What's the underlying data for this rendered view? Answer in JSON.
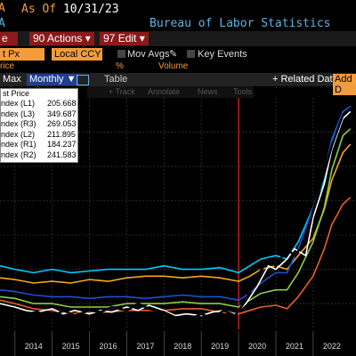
{
  "header": {
    "ticker_fragment": "A",
    "as_of_label": "As Of",
    "as_of_date": "10/31/23",
    "source": "Bureau of Labor Statistics",
    "left_fragment": "A"
  },
  "toolbar": {
    "fragment_left": "e",
    "actions_num": "90",
    "actions_label": "Actions ▾",
    "edit_num": "97",
    "edit_label": "Edit ▾",
    "field1_value": "t Px",
    "field2_value": "Local CCY",
    "mov_avgs_label": "Mov Avgs",
    "key_events_label": "Key Events",
    "price_fragment": "rice",
    "pct_label": "%",
    "volume_label": "Volume",
    "max_label": "Max",
    "period_label": "Monthly ▼",
    "table_label": "Table",
    "related_label": "+ Related Dat",
    "add_label": "Add D",
    "track_label": "+ Track",
    "annotate_label": "Annotate",
    "news_label": "News",
    "tools_label": "Tools"
  },
  "colors": {
    "background": "#000000",
    "accent_orange": "#f39c3c",
    "accent_blue": "#5ab4e6",
    "action_red": "#8b1a1a",
    "event_line": "#e0202a"
  },
  "chart_data": {
    "type": "line",
    "title": "",
    "xlabel": "",
    "ylabel": "",
    "x_ticks": [
      "2014",
      "2015",
      "2016",
      "2017",
      "2018",
      "2019",
      "2020",
      "2021",
      "2022"
    ],
    "event_line_x": 2020.0,
    "legend": {
      "heading": "st Price",
      "entries": [
        {
          "name": "ndex (L1)",
          "value": "205.668",
          "color": "#ffffff"
        },
        {
          "name": "ndex (L3)",
          "value": "349.687",
          "color": "#5ab4e6"
        },
        {
          "name": "ndex (R3)",
          "value": "269.053",
          "color": "#f39c3c"
        },
        {
          "name": "ndex (L2)",
          "value": "211.895",
          "color": "#8bd04a"
        },
        {
          "name": "ndex (R1)",
          "value": "184.237",
          "color": "#1e4fd0"
        },
        {
          "name": "ndex (R2)",
          "value": "241.583",
          "color": "#e8602a"
        }
      ]
    },
    "series": [
      {
        "color": "#00ccff",
        "values": [
          [
            2013.6,
            0.62
          ],
          [
            2014.0,
            0.6
          ],
          [
            2014.5,
            0.58
          ],
          [
            2015.0,
            0.6
          ],
          [
            2015.5,
            0.58
          ],
          [
            2016.0,
            0.59
          ],
          [
            2016.5,
            0.6
          ],
          [
            2017.0,
            0.6
          ],
          [
            2017.5,
            0.6
          ],
          [
            2018.0,
            0.62
          ],
          [
            2018.5,
            0.6
          ],
          [
            2019.0,
            0.6
          ],
          [
            2019.5,
            0.61
          ],
          [
            2020.0,
            0.58
          ],
          [
            2020.3,
            0.62
          ],
          [
            2020.6,
            0.66
          ],
          [
            2021.0,
            0.68
          ],
          [
            2021.3,
            0.66
          ],
          [
            2021.6,
            0.76
          ],
          [
            2022.0,
            0.96
          ],
          [
            2022.3,
            1.12
          ],
          [
            2022.5,
            1.35
          ],
          [
            2022.8,
            1.52
          ],
          [
            2023.0,
            1.55
          ]
        ]
      },
      {
        "color": "#f5a623",
        "values": [
          [
            2013.6,
            0.55
          ],
          [
            2014.0,
            0.54
          ],
          [
            2014.5,
            0.52
          ],
          [
            2015.0,
            0.53
          ],
          [
            2015.5,
            0.52
          ],
          [
            2016.0,
            0.54
          ],
          [
            2016.5,
            0.53
          ],
          [
            2017.0,
            0.55
          ],
          [
            2017.5,
            0.56
          ],
          [
            2018.0,
            0.56
          ],
          [
            2018.5,
            0.55
          ],
          [
            2019.0,
            0.56
          ],
          [
            2019.5,
            0.55
          ],
          [
            2020.0,
            0.53
          ],
          [
            2020.3,
            0.56
          ],
          [
            2020.6,
            0.6
          ],
          [
            2021.0,
            0.62
          ],
          [
            2021.3,
            0.6
          ],
          [
            2021.6,
            0.68
          ],
          [
            2022.0,
            0.78
          ],
          [
            2022.3,
            0.95
          ],
          [
            2022.5,
            1.12
          ],
          [
            2022.8,
            1.28
          ],
          [
            2023.0,
            1.33
          ]
        ]
      },
      {
        "color": "#8bd04a",
        "values": [
          [
            2013.6,
            0.44
          ],
          [
            2014.0,
            0.43
          ],
          [
            2014.5,
            0.4
          ],
          [
            2015.0,
            0.4
          ],
          [
            2015.5,
            0.38
          ],
          [
            2016.0,
            0.38
          ],
          [
            2016.5,
            0.38
          ],
          [
            2017.0,
            0.4
          ],
          [
            2017.5,
            0.4
          ],
          [
            2018.0,
            0.4
          ],
          [
            2018.5,
            0.41
          ],
          [
            2019.0,
            0.4
          ],
          [
            2019.5,
            0.4
          ],
          [
            2020.0,
            0.38
          ],
          [
            2020.3,
            0.42
          ],
          [
            2020.6,
            0.46
          ],
          [
            2021.0,
            0.48
          ],
          [
            2021.3,
            0.48
          ],
          [
            2021.6,
            0.58
          ],
          [
            2022.0,
            0.76
          ],
          [
            2022.3,
            0.96
          ],
          [
            2022.5,
            1.18
          ],
          [
            2022.8,
            1.38
          ],
          [
            2023.0,
            1.42
          ]
        ]
      },
      {
        "color": "#e8602a",
        "values": [
          [
            2013.6,
            0.42
          ],
          [
            2014.0,
            0.4
          ],
          [
            2014.5,
            0.37
          ],
          [
            2015.0,
            0.36
          ],
          [
            2015.5,
            0.34
          ],
          [
            2016.0,
            0.35
          ],
          [
            2016.5,
            0.35
          ],
          [
            2017.0,
            0.36
          ],
          [
            2017.5,
            0.36
          ],
          [
            2018.0,
            0.36
          ],
          [
            2018.5,
            0.37
          ],
          [
            2019.0,
            0.37
          ],
          [
            2019.5,
            0.35
          ],
          [
            2020.0,
            0.34
          ],
          [
            2020.3,
            0.36
          ],
          [
            2020.6,
            0.38
          ],
          [
            2021.0,
            0.39
          ],
          [
            2021.3,
            0.37
          ],
          [
            2021.6,
            0.44
          ],
          [
            2022.0,
            0.56
          ],
          [
            2022.3,
            0.72
          ],
          [
            2022.5,
            0.86
          ],
          [
            2022.8,
            0.98
          ],
          [
            2023.0,
            1.02
          ]
        ]
      },
      {
        "color": "#1e4fd0",
        "values": [
          [
            2013.6,
            0.48
          ],
          [
            2014.0,
            0.47
          ],
          [
            2014.5,
            0.45
          ],
          [
            2015.0,
            0.44
          ],
          [
            2015.5,
            0.44
          ],
          [
            2016.0,
            0.43
          ],
          [
            2016.5,
            0.44
          ],
          [
            2017.0,
            0.44
          ],
          [
            2017.5,
            0.43
          ],
          [
            2018.0,
            0.44
          ],
          [
            2018.5,
            0.45
          ],
          [
            2019.0,
            0.44
          ],
          [
            2019.5,
            0.44
          ],
          [
            2020.0,
            0.42
          ],
          [
            2020.3,
            0.46
          ],
          [
            2020.6,
            0.52
          ],
          [
            2021.0,
            0.58
          ],
          [
            2021.3,
            0.58
          ],
          [
            2021.6,
            0.72
          ],
          [
            2022.0,
            0.96
          ],
          [
            2022.3,
            1.16
          ],
          [
            2022.5,
            1.36
          ],
          [
            2022.8,
            1.52
          ],
          [
            2023.0,
            1.55
          ]
        ]
      },
      {
        "color": "#ffffff",
        "values": [
          [
            2013.6,
            0.4
          ],
          [
            2014.0,
            0.38
          ],
          [
            2014.3,
            0.36
          ],
          [
            2014.6,
            0.35
          ],
          [
            2015.0,
            0.37
          ],
          [
            2015.3,
            0.34
          ],
          [
            2015.6,
            0.36
          ],
          [
            2016.0,
            0.34
          ],
          [
            2016.3,
            0.36
          ],
          [
            2016.6,
            0.35
          ],
          [
            2017.0,
            0.38
          ],
          [
            2017.3,
            0.36
          ],
          [
            2017.6,
            0.39
          ],
          [
            2018.0,
            0.36
          ],
          [
            2018.3,
            0.33
          ],
          [
            2018.6,
            0.34
          ],
          [
            2019.0,
            0.33
          ],
          [
            2019.3,
            0.35
          ],
          [
            2019.6,
            0.36
          ],
          [
            2019.9,
            0.34
          ],
          [
            2020.2,
            0.4
          ],
          [
            2020.5,
            0.5
          ],
          [
            2020.8,
            0.62
          ],
          [
            2021.0,
            0.6
          ],
          [
            2021.3,
            0.66
          ],
          [
            2021.5,
            0.72
          ],
          [
            2021.8,
            0.68
          ],
          [
            2022.0,
            0.9
          ],
          [
            2022.3,
            1.1
          ],
          [
            2022.5,
            1.3
          ],
          [
            2022.8,
            1.48
          ],
          [
            2023.0,
            1.52
          ]
        ]
      },
      {
        "color": "#000000",
        "values": [
          [
            2013.6,
            0.38
          ],
          [
            2014.0,
            0.36
          ],
          [
            2014.3,
            0.34
          ],
          [
            2014.6,
            0.35
          ],
          [
            2015.0,
            0.32
          ],
          [
            2015.3,
            0.36
          ],
          [
            2015.6,
            0.33
          ],
          [
            2016.0,
            0.36
          ],
          [
            2016.3,
            0.35
          ],
          [
            2016.6,
            0.38
          ],
          [
            2017.0,
            0.36
          ],
          [
            2017.3,
            0.4
          ],
          [
            2017.6,
            0.37
          ],
          [
            2018.0,
            0.35
          ],
          [
            2018.3,
            0.32
          ],
          [
            2018.6,
            0.3
          ],
          [
            2019.0,
            0.34
          ],
          [
            2019.3,
            0.31
          ],
          [
            2019.6,
            0.36
          ],
          [
            2019.9,
            0.33
          ],
          [
            2020.2,
            0.42
          ],
          [
            2020.5,
            0.56
          ],
          [
            2020.8,
            0.66
          ],
          [
            2021.0,
            0.62
          ],
          [
            2021.3,
            0.72
          ],
          [
            2021.5,
            0.68
          ],
          [
            2021.8,
            0.76
          ],
          [
            2022.0,
            0.94
          ],
          [
            2022.3,
            1.16
          ],
          [
            2022.5,
            1.32
          ],
          [
            2022.8,
            1.5
          ],
          [
            2023.0,
            1.54
          ]
        ]
      }
    ]
  }
}
